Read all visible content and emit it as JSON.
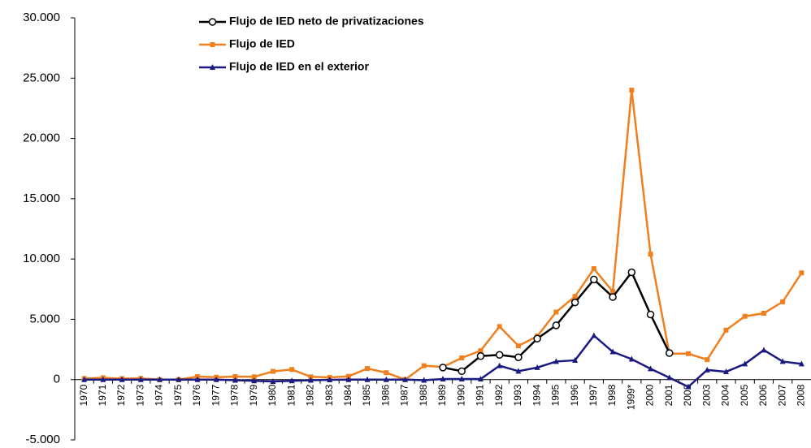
{
  "chart_data": {
    "type": "line",
    "categories": [
      "1970",
      "1971",
      "1972",
      "1973",
      "1974",
      "1975",
      "1976",
      "1977",
      "1978",
      "1979",
      "1980",
      "1981",
      "1982",
      "1983",
      "1984",
      "1985",
      "1986",
      "1987",
      "1988",
      "1989",
      "1990",
      "1991",
      "1992",
      "1993",
      "1994",
      "1995",
      "1996",
      "1997",
      "1998",
      "1999*",
      "2000",
      "2001",
      "2002",
      "2003",
      "2004",
      "2005",
      "2006",
      "2007",
      "2008"
    ],
    "series": [
      {
        "name": "Flujo de IED neto de privatizaciones",
        "color": "#000000",
        "marker": "circle",
        "values": [
          null,
          null,
          null,
          null,
          null,
          null,
          null,
          null,
          null,
          null,
          null,
          null,
          null,
          null,
          null,
          null,
          null,
          null,
          null,
          1000,
          700,
          1950,
          2050,
          1850,
          3400,
          4500,
          6400,
          8300,
          6850,
          8900,
          5400,
          2200,
          null,
          null,
          null,
          null,
          null,
          null,
          null
        ]
      },
      {
        "name": "Flujo de IED",
        "color": "#f07f1e",
        "marker": "square",
        "values": [
          90,
          150,
          80,
          100,
          0,
          0,
          250,
          200,
          250,
          230,
          680,
          840,
          230,
          180,
          270,
          920,
          570,
          0,
          1150,
          1050,
          1800,
          2400,
          4400,
          2800,
          3600,
          5600,
          6900,
          9200,
          7300,
          24000,
          10400,
          2150,
          2150,
          1650,
          4100,
          5250,
          5500,
          6450,
          8850
        ]
      },
      {
        "name": "Flujo de IED en el exterior",
        "color": "#1a1a80",
        "marker": "triangle",
        "values": [
          0,
          0,
          0,
          0,
          0,
          0,
          0,
          0,
          -50,
          -100,
          -150,
          -100,
          -50,
          -20,
          0,
          0,
          0,
          0,
          -50,
          50,
          50,
          50,
          1150,
          700,
          1000,
          1500,
          1600,
          3650,
          2300,
          1700,
          900,
          160,
          -600,
          800,
          650,
          1300,
          2450,
          1500,
          1300
        ]
      }
    ],
    "ylim": [
      -5000,
      30000
    ],
    "yticks": [
      {
        "value": -5000,
        "label": "-5.000"
      },
      0,
      {
        "value": 5000,
        "label": "5.000"
      },
      {
        "value": 10000,
        "label": "10.000"
      },
      {
        "value": 15000,
        "label": "15.000"
      },
      {
        "value": 20000,
        "label": "20.000"
      },
      {
        "value": 25000,
        "label": "25.000"
      },
      {
        "value": 30000,
        "label": "30.000"
      }
    ],
    "grid": false,
    "legend": "top-left"
  }
}
